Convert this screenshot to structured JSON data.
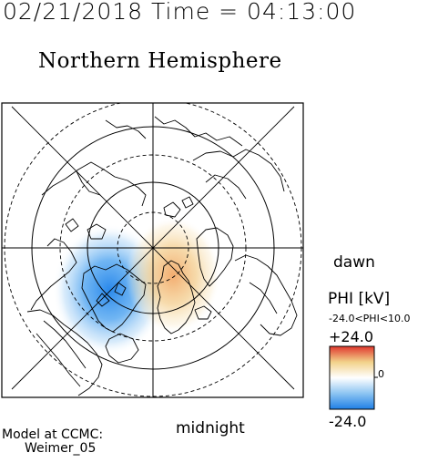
{
  "header": {
    "datetime": "02/21/2018 Time = 04:13:00",
    "hemisphere": "Northern Hemisphere"
  },
  "labels": {
    "dawn": "dawn",
    "midnight": "midnight",
    "model_line1": "Model at CCMC:",
    "model_line2": "Weimer_05"
  },
  "colorbar": {
    "quantity": "PHI [kV]",
    "range_text": "-24.0<PHI<10.0",
    "max_label": "+24.0",
    "min_label": "-24.0",
    "zero_label": "0",
    "colors": [
      "#1f7fe6",
      "#8cc4f2",
      "#ffffff",
      "#f2d28a",
      "#e0382e"
    ]
  },
  "map": {
    "projection": "north-polar",
    "potential_cells": [
      {
        "sign": "negative",
        "color": "#3399ee"
      },
      {
        "sign": "positive",
        "color": "#f0b870"
      }
    ]
  }
}
